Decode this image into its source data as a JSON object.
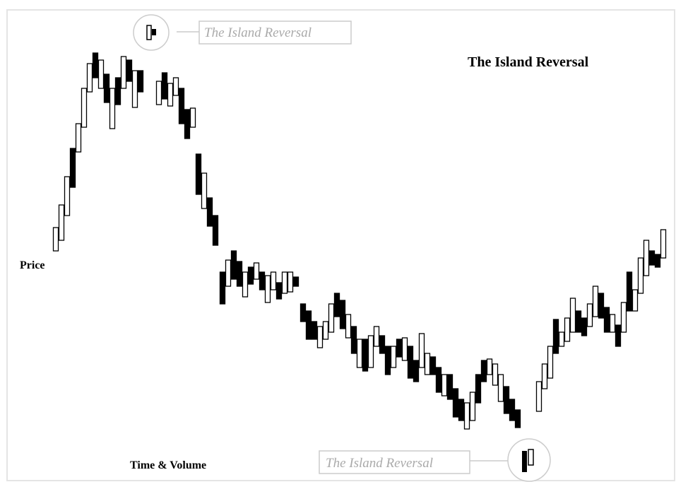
{
  "title": "The Island Reversal",
  "axis_labels": {
    "y": "Price",
    "x": "Time & Volume"
  },
  "callouts": [
    {
      "label": "The Island Reversal"
    },
    {
      "label": "The Island Reversal"
    }
  ]
}
